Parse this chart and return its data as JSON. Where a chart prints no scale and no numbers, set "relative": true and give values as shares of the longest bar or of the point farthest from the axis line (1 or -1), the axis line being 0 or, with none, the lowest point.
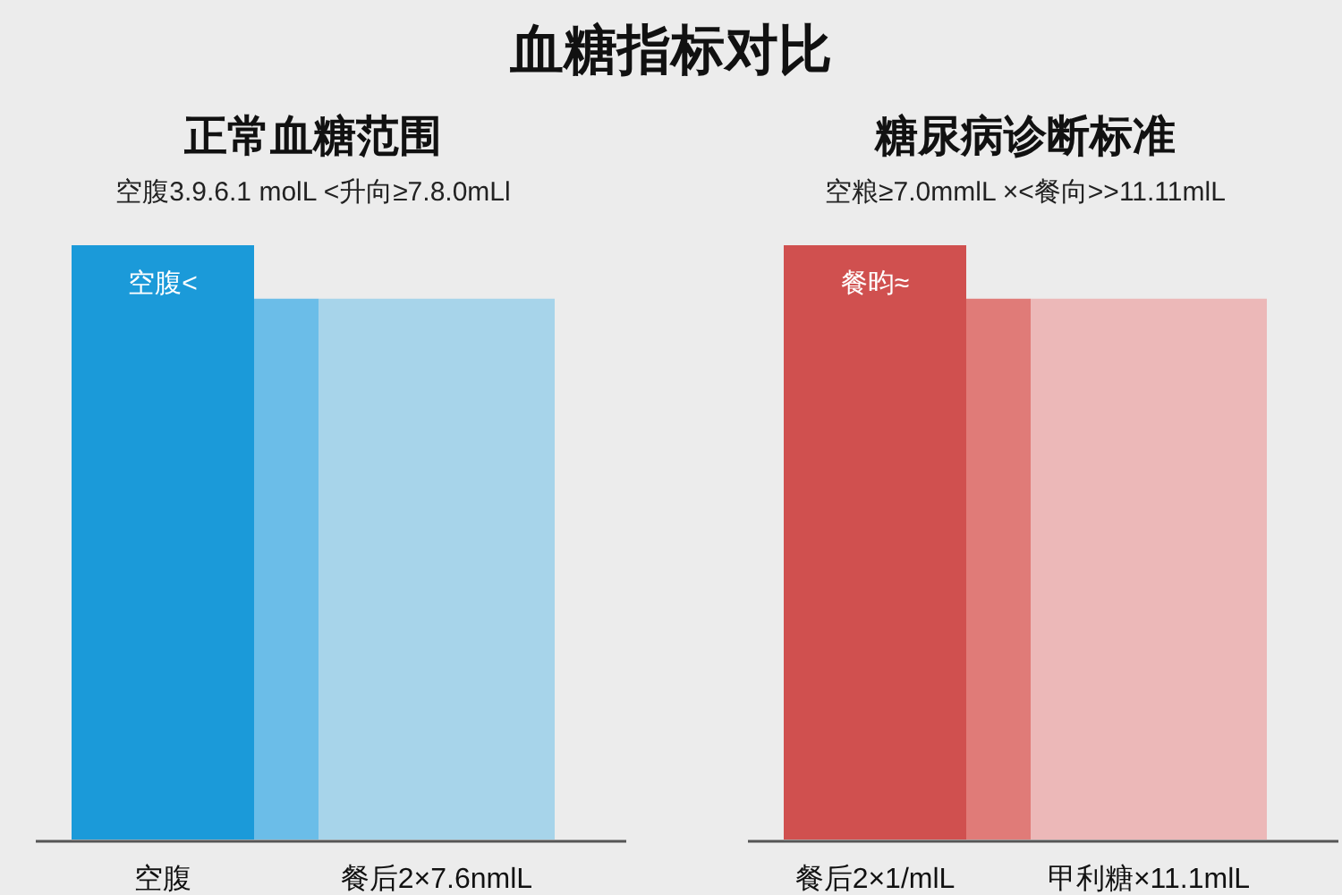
{
  "chart_data": [
    {
      "type": "other",
      "title": "血糖指标对比"
    },
    {
      "type": "bar",
      "title": "正常血糖范围",
      "subtitle": "空腹3.9.6.1 molL   <升向≥7.8.0mLl",
      "categories": [
        "空腹",
        null,
        "餐后2×7.6nmlL"
      ],
      "values": [
        1,
        0.91,
        0.91
      ],
      "colors": [
        "#1b9ad9",
        "#6bbde8",
        "#a7d4ea"
      ],
      "relative": true,
      "annotations": [
        {
          "text": "空腹<",
          "x": "空腹",
          "y": 1
        }
      ]
    },
    {
      "type": "bar",
      "title": "糖尿病诊断标准",
      "subtitle": "空粮≥7.0mmlL   ×<餐向>>11.11mlL",
      "categories": [
        "餐后2×1/mlL",
        null,
        "甲利糖×11.1mlL"
      ],
      "values": [
        1,
        0.91,
        0.91
      ],
      "colors": [
        "#d0504f",
        "#e07b78",
        "#ecb8b8"
      ],
      "relative": true,
      "annotations": [
        {
          "text": "餐昀≈",
          "x": "餐后2×1/mlL",
          "y": 1
        }
      ]
    }
  ]
}
